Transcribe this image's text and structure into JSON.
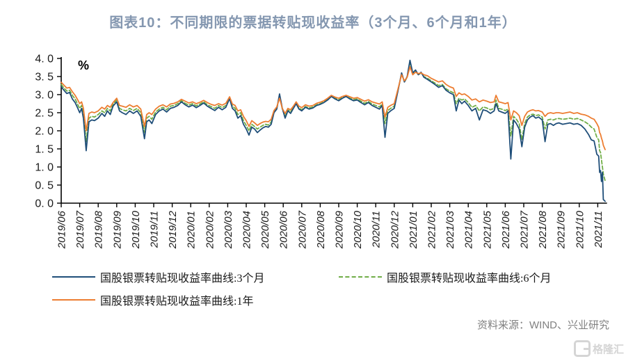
{
  "title": "图表10：不同期限的票据转贴现收益率（3个月、6个月和1年）",
  "unit_label": "%",
  "source": "资料来源：WIND、兴业研究",
  "watermark": "格隆汇",
  "colors": {
    "title": "#8497B0",
    "axis": "#000000",
    "tick_text": "#1a1a1a",
    "source_text": "#808080",
    "series_3m": "#1F4E79",
    "series_6m": "#70AD47",
    "series_1y": "#ED7D31"
  },
  "legend": {
    "items": [
      {
        "label": "国股银票转贴现收益率曲线:3个月",
        "color": "#1F4E79",
        "style": "solid"
      },
      {
        "label": "国股银票转贴现收益率曲线:6个月",
        "color": "#70AD47",
        "style": "dashed"
      },
      {
        "label": "国股银票转贴现收益率曲线:1年",
        "color": "#ED7D31",
        "style": "solid"
      }
    ]
  },
  "chart_data": {
    "type": "line",
    "title": "图表10：不同期限的票据转贴现收益率（3个月、6个月和1年）",
    "xlabel": "",
    "ylabel": "%",
    "ylim": [
      0.0,
      4.0
    ],
    "ytick_labels": [
      "4. 0",
      "3. 5",
      "3. 0",
      "2. 5",
      "2. 0",
      "1. 5",
      "1. 0",
      "0. 5",
      "0. 0"
    ],
    "grid": false,
    "legend_position": "bottom",
    "categories": [
      "2019/06",
      "2019/07",
      "2019/08",
      "2019/09",
      "2019/10",
      "2019/11",
      "2019/12",
      "2020/01",
      "2020/02",
      "2020/03",
      "2020/04",
      "2020/05",
      "2020/06",
      "2020/07",
      "2020/08",
      "2020/09",
      "2020/10",
      "2020/11",
      "2020/12",
      "2021/01",
      "2021/02",
      "2021/03",
      "2021/04",
      "2021/05",
      "2021/06",
      "2021/07",
      "2021/08",
      "2021/09",
      "2021/10",
      "2021/11"
    ],
    "series": [
      {
        "name": "国股银票转贴现收益率曲线:3个月",
        "color": "#1F4E79",
        "style": "solid"
      },
      {
        "name": "国股银票转贴现收益率曲线:6个月",
        "color": "#70AD47",
        "style": "dashed"
      },
      {
        "name": "国股银票转贴现收益率曲线:1年",
        "color": "#ED7D31",
        "style": "solid"
      }
    ],
    "point_format": [
      "month_offset_from_2019/06",
      "3个月(%)",
      "6个月(%)",
      "1年(%)"
    ],
    "points": [
      [
        0,
        3.22,
        3.28,
        3.34
      ],
      [
        0.15,
        3.12,
        3.18,
        3.26
      ],
      [
        0.3,
        3.03,
        3.1,
        3.18
      ],
      [
        0.45,
        3.06,
        3.12,
        3.2
      ],
      [
        0.6,
        2.88,
        2.98,
        3.08
      ],
      [
        0.75,
        2.78,
        2.88,
        2.98
      ],
      [
        0.9,
        2.62,
        2.72,
        2.85
      ],
      [
        1.0,
        2.5,
        2.62,
        2.75
      ],
      [
        1.1,
        2.62,
        2.7,
        2.8
      ],
      [
        1.2,
        2.35,
        2.48,
        2.62
      ],
      [
        1.35,
        1.45,
        1.7,
        2.0
      ],
      [
        1.5,
        2.25,
        2.35,
        2.48
      ],
      [
        1.65,
        2.3,
        2.4,
        2.52
      ],
      [
        1.8,
        2.28,
        2.38,
        2.5
      ],
      [
        2.0,
        2.35,
        2.45,
        2.55
      ],
      [
        2.2,
        2.48,
        2.55,
        2.65
      ],
      [
        2.35,
        2.4,
        2.5,
        2.6
      ],
      [
        2.5,
        2.55,
        2.62,
        2.7
      ],
      [
        2.65,
        2.45,
        2.55,
        2.65
      ],
      [
        2.8,
        2.68,
        2.73,
        2.78
      ],
      [
        3.0,
        2.8,
        2.85,
        2.9
      ],
      [
        3.15,
        2.55,
        2.62,
        2.7
      ],
      [
        3.3,
        2.5,
        2.58,
        2.68
      ],
      [
        3.5,
        2.45,
        2.55,
        2.65
      ],
      [
        3.7,
        2.55,
        2.62,
        2.72
      ],
      [
        3.9,
        2.48,
        2.56,
        2.66
      ],
      [
        4.1,
        2.55,
        2.62,
        2.7
      ],
      [
        4.3,
        2.4,
        2.5,
        2.6
      ],
      [
        4.5,
        1.78,
        1.95,
        2.12
      ],
      [
        4.62,
        2.25,
        2.35,
        2.45
      ],
      [
        4.75,
        2.3,
        2.4,
        2.5
      ],
      [
        4.9,
        2.2,
        2.32,
        2.45
      ],
      [
        5.1,
        2.45,
        2.52,
        2.6
      ],
      [
        5.3,
        2.55,
        2.6,
        2.68
      ],
      [
        5.5,
        2.6,
        2.65,
        2.72
      ],
      [
        5.7,
        2.52,
        2.58,
        2.66
      ],
      [
        5.9,
        2.62,
        2.68,
        2.74
      ],
      [
        6.1,
        2.65,
        2.7,
        2.76
      ],
      [
        6.3,
        2.7,
        2.75,
        2.8
      ],
      [
        6.5,
        2.8,
        2.83,
        2.87
      ],
      [
        6.7,
        2.72,
        2.76,
        2.82
      ],
      [
        6.9,
        2.66,
        2.71,
        2.77
      ],
      [
        7.1,
        2.71,
        2.75,
        2.8
      ],
      [
        7.3,
        2.64,
        2.69,
        2.75
      ],
      [
        7.5,
        2.7,
        2.74,
        2.79
      ],
      [
        7.7,
        2.77,
        2.8,
        2.84
      ],
      [
        7.9,
        2.68,
        2.72,
        2.78
      ],
      [
        8.1,
        2.62,
        2.67,
        2.73
      ],
      [
        8.3,
        2.56,
        2.62,
        2.7
      ],
      [
        8.5,
        2.65,
        2.7,
        2.75
      ],
      [
        8.7,
        2.58,
        2.64,
        2.71
      ],
      [
        8.9,
        2.65,
        2.7,
        2.76
      ],
      [
        9.1,
        2.89,
        2.91,
        2.94
      ],
      [
        9.25,
        2.62,
        2.68,
        2.74
      ],
      [
        9.4,
        2.55,
        2.62,
        2.7
      ],
      [
        9.55,
        2.35,
        2.45,
        2.55
      ],
      [
        9.7,
        2.42,
        2.5,
        2.58
      ],
      [
        9.85,
        2.18,
        2.28,
        2.4
      ],
      [
        10.0,
        2.05,
        2.15,
        2.28
      ],
      [
        10.15,
        1.88,
        2.0,
        2.12
      ],
      [
        10.3,
        2.1,
        2.18,
        2.28
      ],
      [
        10.45,
        2.05,
        2.12,
        2.22
      ],
      [
        10.6,
        1.95,
        2.05,
        2.15
      ],
      [
        10.75,
        2.02,
        2.1,
        2.2
      ],
      [
        10.9,
        2.08,
        2.15,
        2.24
      ],
      [
        11.05,
        2.12,
        2.18,
        2.26
      ],
      [
        11.2,
        2.1,
        2.16,
        2.25
      ],
      [
        11.35,
        2.18,
        2.24,
        2.32
      ],
      [
        11.5,
        2.5,
        2.52,
        2.56
      ],
      [
        11.65,
        2.6,
        2.62,
        2.66
      ],
      [
        11.8,
        3.02,
        2.96,
        2.9
      ],
      [
        11.95,
        2.62,
        2.6,
        2.62
      ],
      [
        12.1,
        2.35,
        2.4,
        2.48
      ],
      [
        12.25,
        2.55,
        2.58,
        2.62
      ],
      [
        12.4,
        2.48,
        2.52,
        2.58
      ],
      [
        12.55,
        2.62,
        2.64,
        2.68
      ],
      [
        12.7,
        2.75,
        2.76,
        2.8
      ],
      [
        12.85,
        2.6,
        2.63,
        2.68
      ],
      [
        13.0,
        2.55,
        2.58,
        2.64
      ],
      [
        13.2,
        2.65,
        2.67,
        2.72
      ],
      [
        13.4,
        2.6,
        2.63,
        2.68
      ],
      [
        13.6,
        2.63,
        2.66,
        2.7
      ],
      [
        13.8,
        2.7,
        2.72,
        2.76
      ],
      [
        14.0,
        2.73,
        2.75,
        2.79
      ],
      [
        14.2,
        2.78,
        2.8,
        2.83
      ],
      [
        14.4,
        2.85,
        2.87,
        2.9
      ],
      [
        14.6,
        2.95,
        2.96,
        2.98
      ],
      [
        14.8,
        2.88,
        2.9,
        2.93
      ],
      [
        15.0,
        2.83,
        2.86,
        2.9
      ],
      [
        15.2,
        2.9,
        2.92,
        2.95
      ],
      [
        15.4,
        2.95,
        2.96,
        2.98
      ],
      [
        15.6,
        2.88,
        2.9,
        2.94
      ],
      [
        15.8,
        2.83,
        2.86,
        2.9
      ],
      [
        16.0,
        2.85,
        2.88,
        2.92
      ],
      [
        16.2,
        2.78,
        2.82,
        2.87
      ],
      [
        16.4,
        2.72,
        2.76,
        2.82
      ],
      [
        16.6,
        2.78,
        2.81,
        2.86
      ],
      [
        16.8,
        2.7,
        2.74,
        2.8
      ],
      [
        17.0,
        2.65,
        2.7,
        2.77
      ],
      [
        17.2,
        2.6,
        2.66,
        2.74
      ],
      [
        17.35,
        2.7,
        2.74,
        2.8
      ],
      [
        17.5,
        1.82,
        2.2,
        2.38
      ],
      [
        17.65,
        2.48,
        2.56,
        2.65
      ],
      [
        17.8,
        2.55,
        2.62,
        2.7
      ],
      [
        18.0,
        2.62,
        2.68,
        2.75
      ],
      [
        18.2,
        3.1,
        3.12,
        3.15
      ],
      [
        18.4,
        3.6,
        3.58,
        3.55
      ],
      [
        18.55,
        3.35,
        3.35,
        3.38
      ],
      [
        18.7,
        3.5,
        3.48,
        3.48
      ],
      [
        18.85,
        3.95,
        3.87,
        3.77
      ],
      [
        19.0,
        3.6,
        3.58,
        3.55
      ],
      [
        19.15,
        3.68,
        3.65,
        3.62
      ],
      [
        19.3,
        3.55,
        3.55,
        3.58
      ],
      [
        19.45,
        3.62,
        3.6,
        3.6
      ],
      [
        19.6,
        3.48,
        3.5,
        3.55
      ],
      [
        19.8,
        3.42,
        3.45,
        3.52
      ],
      [
        20.0,
        3.35,
        3.38,
        3.45
      ],
      [
        20.2,
        3.28,
        3.32,
        3.4
      ],
      [
        20.4,
        3.2,
        3.25,
        3.35
      ],
      [
        20.6,
        3.25,
        3.28,
        3.38
      ],
      [
        20.8,
        3.12,
        3.16,
        3.28
      ],
      [
        21.0,
        3.05,
        3.1,
        3.22
      ],
      [
        21.2,
        3.0,
        3.05,
        3.18
      ],
      [
        21.35,
        2.55,
        2.75,
        2.95
      ],
      [
        21.5,
        2.85,
        2.9,
        3.05
      ],
      [
        21.65,
        2.75,
        2.85,
        3.0
      ],
      [
        21.8,
        2.82,
        2.88,
        3.02
      ],
      [
        22.0,
        2.7,
        2.78,
        2.95
      ],
      [
        22.2,
        2.55,
        2.65,
        2.85
      ],
      [
        22.4,
        2.62,
        2.7,
        2.88
      ],
      [
        22.6,
        2.3,
        2.55,
        2.8
      ],
      [
        22.8,
        2.58,
        2.66,
        2.85
      ],
      [
        23.0,
        2.55,
        2.63,
        2.82
      ],
      [
        23.2,
        2.48,
        2.58,
        2.78
      ],
      [
        23.4,
        2.55,
        2.62,
        2.8
      ],
      [
        23.5,
        2.75,
        2.85,
        2.98
      ],
      [
        23.65,
        2.55,
        2.62,
        2.8
      ],
      [
        23.8,
        2.52,
        2.6,
        2.78
      ],
      [
        24.0,
        2.48,
        2.56,
        2.75
      ],
      [
        24.15,
        2.55,
        2.6,
        2.78
      ],
      [
        24.3,
        1.22,
        1.85,
        2.3
      ],
      [
        24.45,
        2.3,
        2.4,
        2.55
      ],
      [
        24.6,
        2.2,
        2.32,
        2.5
      ],
      [
        24.75,
        2.05,
        2.2,
        2.42
      ],
      [
        24.9,
        1.56,
        1.75,
        2.15
      ],
      [
        25.05,
        2.1,
        2.2,
        2.4
      ],
      [
        25.2,
        2.3,
        2.38,
        2.52
      ],
      [
        25.35,
        2.38,
        2.44,
        2.56
      ],
      [
        25.5,
        2.42,
        2.46,
        2.58
      ],
      [
        25.65,
        2.35,
        2.42,
        2.55
      ],
      [
        25.8,
        2.38,
        2.44,
        2.56
      ],
      [
        26.0,
        2.3,
        2.38,
        2.52
      ],
      [
        26.15,
        1.7,
        2.05,
        2.4
      ],
      [
        26.3,
        2.18,
        2.3,
        2.48
      ],
      [
        26.45,
        2.2,
        2.32,
        2.5
      ],
      [
        26.6,
        2.15,
        2.3,
        2.48
      ],
      [
        26.75,
        2.2,
        2.33,
        2.5
      ],
      [
        26.9,
        2.22,
        2.34,
        2.5
      ],
      [
        27.1,
        2.18,
        2.32,
        2.48
      ],
      [
        27.3,
        2.2,
        2.33,
        2.5
      ],
      [
        27.5,
        2.22,
        2.35,
        2.52
      ],
      [
        27.7,
        2.18,
        2.32,
        2.48
      ],
      [
        27.9,
        2.2,
        2.34,
        2.5
      ],
      [
        28.1,
        2.15,
        2.3,
        2.46
      ],
      [
        28.3,
        2.05,
        2.25,
        2.44
      ],
      [
        28.5,
        1.9,
        2.18,
        2.4
      ],
      [
        28.65,
        1.75,
        2.1,
        2.35
      ],
      [
        28.8,
        1.72,
        2.05,
        2.32
      ],
      [
        28.95,
        1.35,
        1.82,
        2.2
      ],
      [
        29.05,
        1.3,
        1.75,
        2.1
      ],
      [
        29.1,
        0.85,
        1.45,
        1.95
      ],
      [
        29.15,
        0.9,
        1.4,
        1.9
      ],
      [
        29.2,
        0.6,
        1.2,
        1.8
      ],
      [
        29.25,
        0.85,
        1.0,
        1.72
      ],
      [
        29.3,
        0.1,
        0.8,
        1.6
      ],
      [
        29.4,
        0.05,
        0.62,
        1.48
      ]
    ]
  }
}
